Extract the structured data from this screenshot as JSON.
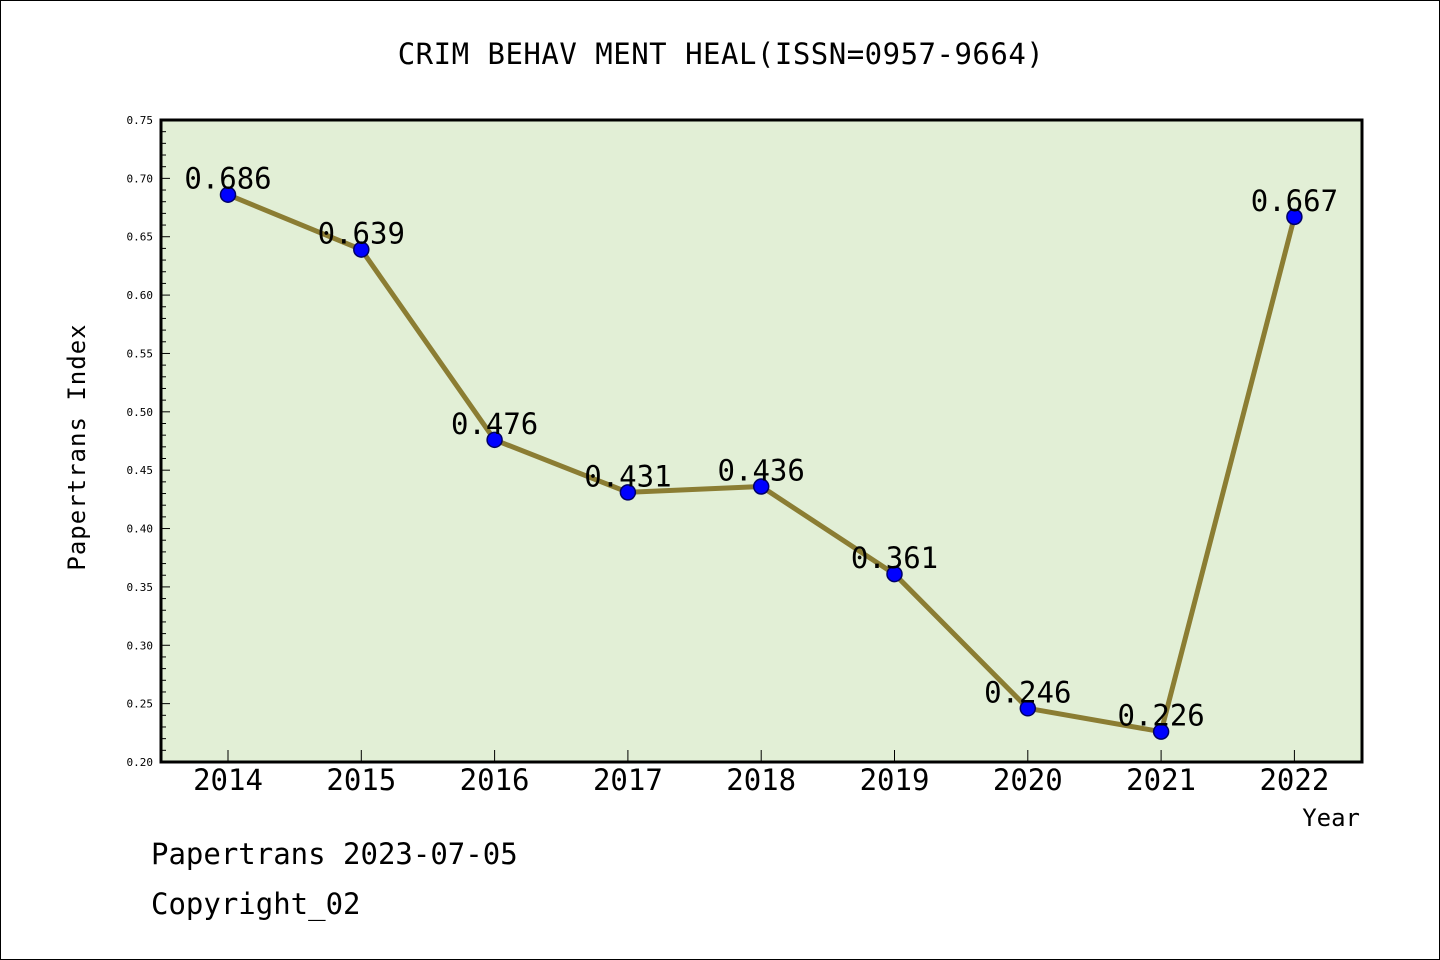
{
  "chart_data": {
    "type": "line",
    "title": "CRIM BEHAV MENT HEAL(ISSN=0957-9664)",
    "xlabel": "Year",
    "ylabel": "Papertrans Index",
    "categories": [
      "2014",
      "2015",
      "2016",
      "2017",
      "2018",
      "2019",
      "2020",
      "2021",
      "2022"
    ],
    "series": [
      {
        "values": [
          0.686,
          0.639,
          0.476,
          0.431,
          0.436,
          0.361,
          0.246,
          0.226,
          0.667
        ],
        "labels": [
          "0.686",
          "0.639",
          "0.476",
          "0.431",
          "0.436",
          "0.361",
          "0.246",
          "0.226",
          "0.667"
        ]
      }
    ],
    "ylim": [
      0.2,
      0.75
    ],
    "yticks": [
      "0.20",
      "0.25",
      "0.30",
      "0.35",
      "0.40",
      "0.45",
      "0.50",
      "0.55",
      "0.60",
      "0.65",
      "0.70",
      "0.75"
    ],
    "grid": false,
    "colors": {
      "plot_background": "#e2efd6",
      "line": "#8b7d33",
      "marker_fill": "#0000ff",
      "marker_stroke": "#000066"
    }
  },
  "footer": {
    "date": "Papertrans 2023-07-05",
    "copyright": "Copyright_02"
  }
}
